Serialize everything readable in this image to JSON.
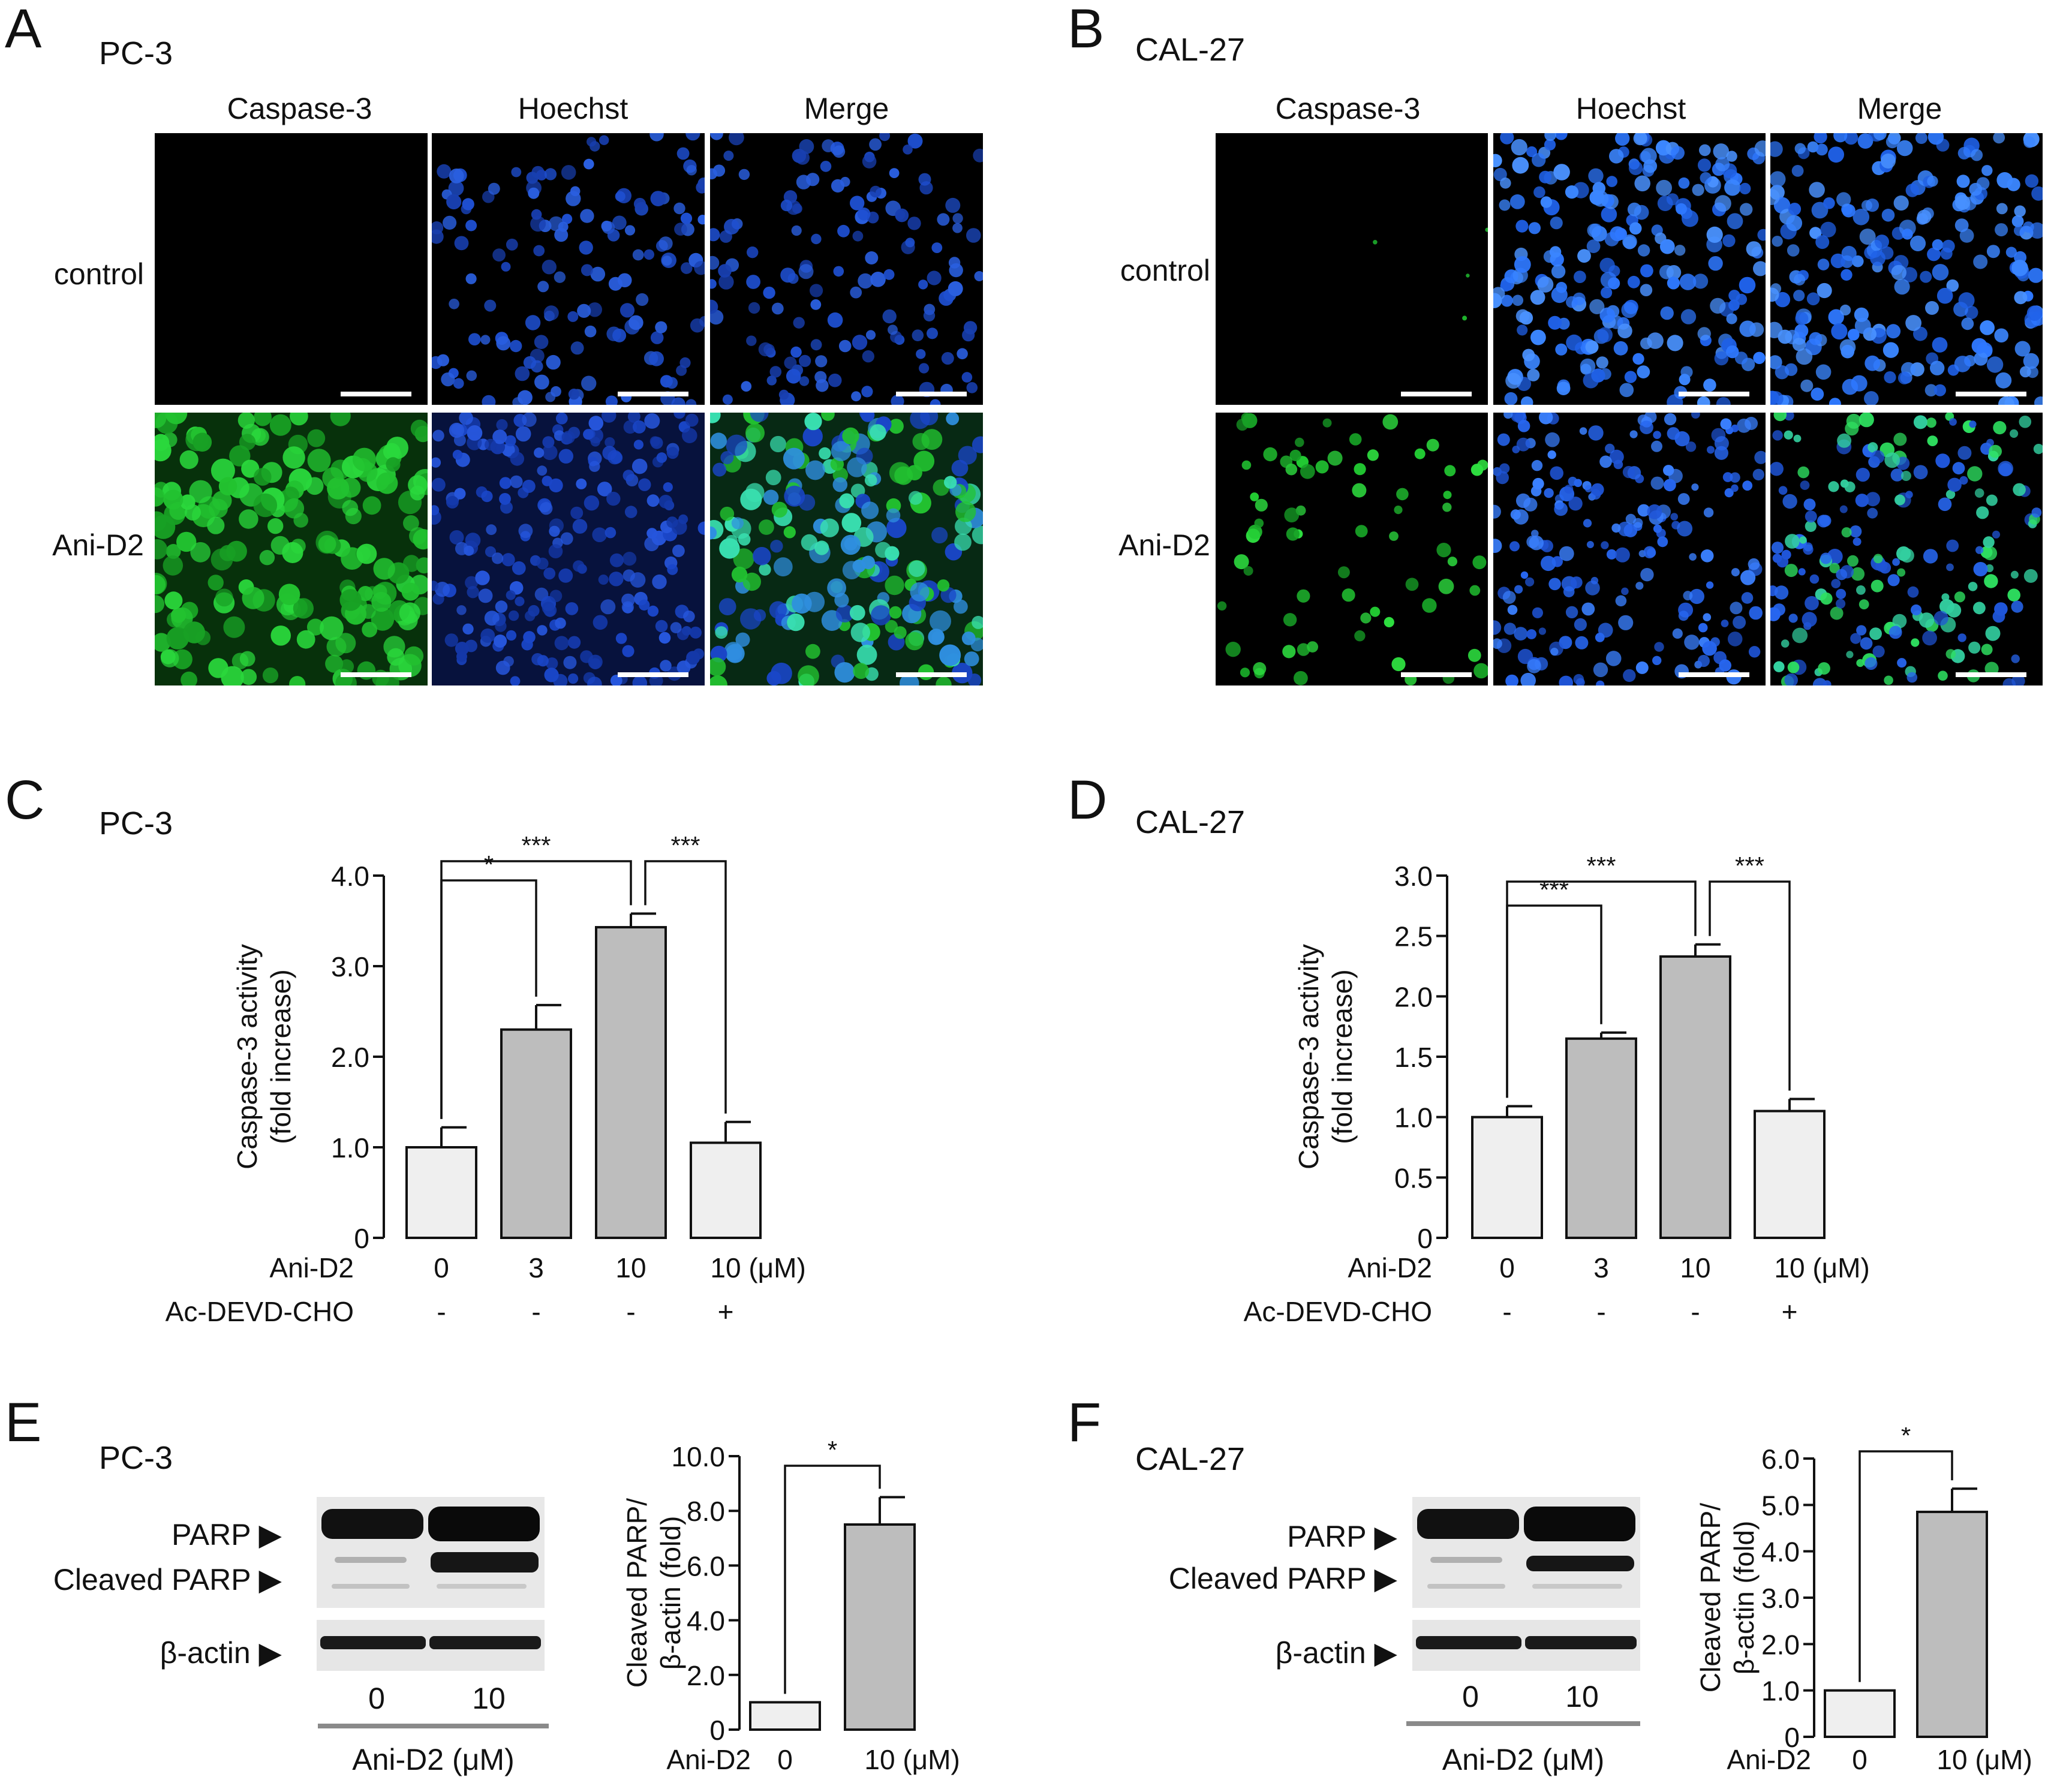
{
  "panels": {
    "A": {
      "letter": "A",
      "cell_line": "PC-3"
    },
    "B": {
      "letter": "B",
      "cell_line": "CAL-27"
    },
    "C": {
      "letter": "C",
      "cell_line": "PC-3"
    },
    "D": {
      "letter": "D",
      "cell_line": "CAL-27"
    },
    "E": {
      "letter": "E",
      "cell_line": "PC-3"
    },
    "F": {
      "letter": "F",
      "cell_line": "CAL-27"
    }
  },
  "microscopy": {
    "columns": [
      "Caspase-3",
      "Hoechst",
      "Merge"
    ],
    "rows": [
      "control",
      "Ani-D2"
    ]
  },
  "blots": {
    "bands": {
      "parp": "PARP",
      "cleaved": "Cleaved PARP",
      "actin": "β-actin"
    },
    "lanes": [
      "0",
      "10"
    ],
    "axis_label": "Ani-D2 (μM)"
  },
  "colors": {
    "light_bar": "#efefef",
    "dark_bar": "#bdbdbd",
    "hoechst": "#2060e0",
    "caspase": "#22cc33"
  },
  "chart_data": [
    {
      "id": "C",
      "type": "bar",
      "title": "PC-3",
      "ylabel": "Caspase-3 activity\n(fold increase)",
      "ylim": [
        0,
        4.0
      ],
      "yticks": [
        "0",
        "1.0",
        "2.0",
        "3.0",
        "4.0"
      ],
      "ytick_values": [
        0,
        1,
        2,
        3,
        4
      ],
      "treatment_rows": [
        {
          "label": "Ani-D2",
          "values": [
            "0",
            "3",
            "10",
            "10 (μM)"
          ]
        },
        {
          "label": "Ac-DEVD-CHO",
          "values": [
            "-",
            "-",
            "-",
            "+"
          ]
        }
      ],
      "values": [
        1.0,
        2.3,
        3.43,
        1.05
      ],
      "errors": [
        0.22,
        0.27,
        0.15,
        0.23
      ],
      "fill": [
        "light",
        "dark",
        "dark",
        "light"
      ],
      "significance": [
        {
          "from": 0,
          "to": 1,
          "label": "*"
        },
        {
          "from": 0,
          "to": 2,
          "label": "***"
        },
        {
          "from": 2,
          "to": 3,
          "label": "***"
        }
      ]
    },
    {
      "id": "D",
      "type": "bar",
      "title": "CAL-27",
      "ylabel": "Caspase-3 activity\n(fold increase)",
      "ylim": [
        0,
        3.0
      ],
      "yticks": [
        "0",
        "0.5",
        "1.0",
        "1.5",
        "2.0",
        "2.5",
        "3.0"
      ],
      "ytick_values": [
        0,
        0.5,
        1,
        1.5,
        2,
        2.5,
        3
      ],
      "treatment_rows": [
        {
          "label": "Ani-D2",
          "values": [
            "0",
            "3",
            "10",
            "10 (μM)"
          ]
        },
        {
          "label": "Ac-DEVD-CHO",
          "values": [
            "-",
            "-",
            "-",
            "+"
          ]
        }
      ],
      "values": [
        1.0,
        1.65,
        2.33,
        1.05
      ],
      "errors": [
        0.09,
        0.05,
        0.1,
        0.1
      ],
      "fill": [
        "light",
        "dark",
        "dark",
        "light"
      ],
      "significance": [
        {
          "from": 0,
          "to": 1,
          "label": "***"
        },
        {
          "from": 0,
          "to": 2,
          "label": "***"
        },
        {
          "from": 2,
          "to": 3,
          "label": "***"
        }
      ]
    },
    {
      "id": "E",
      "type": "bar",
      "title": "PC-3",
      "ylabel": "Cleaved PARP/\nβ-actin (fold)",
      "ylim": [
        0,
        10.0
      ],
      "yticks": [
        "0",
        "2.0",
        "4.0",
        "6.0",
        "8.0",
        "10.0"
      ],
      "ytick_values": [
        0,
        2,
        4,
        6,
        8,
        10
      ],
      "treatment_rows": [
        {
          "label": "Ani-D2",
          "values": [
            "0",
            "10 (μM)"
          ]
        }
      ],
      "values": [
        1.0,
        7.5
      ],
      "errors": [
        0.0,
        1.0
      ],
      "fill": [
        "light",
        "dark"
      ],
      "significance": [
        {
          "from": 0,
          "to": 1,
          "label": "*"
        }
      ]
    },
    {
      "id": "F",
      "type": "bar",
      "title": "CAL-27",
      "ylabel": "Cleaved PARP/\nβ-actin (fold)",
      "ylim": [
        0,
        6.0
      ],
      "yticks": [
        "0",
        "1.0",
        "2.0",
        "3.0",
        "4.0",
        "5.0",
        "6.0"
      ],
      "ytick_values": [
        0,
        1,
        2,
        3,
        4,
        5,
        6
      ],
      "treatment_rows": [
        {
          "label": "Ani-D2",
          "values": [
            "0",
            "10 (μM)"
          ]
        }
      ],
      "values": [
        1.0,
        4.85
      ],
      "errors": [
        0.0,
        0.5
      ],
      "fill": [
        "light",
        "dark"
      ],
      "significance": [
        {
          "from": 0,
          "to": 1,
          "label": "*"
        }
      ]
    }
  ]
}
